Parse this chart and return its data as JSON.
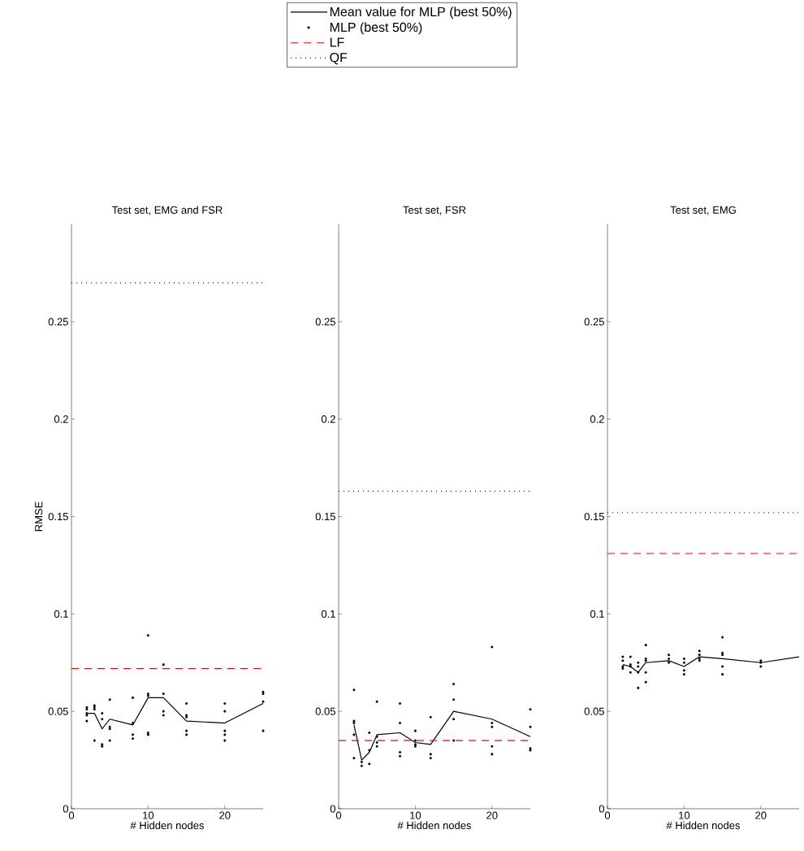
{
  "chart_data": [
    {
      "type": "line",
      "title": "Test set, EMG and FSR",
      "xlabel": "# Hidden nodes",
      "ylabel": "RMSE",
      "xlim": [
        0,
        25
      ],
      "ylim": [
        0,
        0.3
      ],
      "xticks": [
        0,
        10,
        20
      ],
      "yticks": [
        0,
        0.05,
        0.1,
        0.15,
        0.2,
        0.25
      ],
      "grid": false,
      "legend": "top",
      "series": [
        {
          "name": "Mean value for MLP (best 50%)",
          "type": "line",
          "color": "#000000",
          "line_style": "solid",
          "marker": "none",
          "x": [
            2,
            3,
            4,
            5,
            8,
            10,
            12,
            15,
            20,
            25
          ],
          "values": [
            0.049,
            0.049,
            0.041,
            0.046,
            0.043,
            0.057,
            0.057,
            0.045,
            0.044,
            0.054
          ]
        },
        {
          "name": "MLP (best 50%)",
          "type": "scatter",
          "color": "#000000",
          "marker": "circle",
          "x": [
            2,
            2,
            2,
            2,
            2,
            3,
            3,
            3,
            3,
            4,
            4,
            4,
            4,
            5,
            5,
            5,
            5,
            8,
            8,
            8,
            8,
            10,
            10,
            10,
            10,
            10,
            12,
            12,
            12,
            12,
            15,
            15,
            15,
            15,
            15,
            20,
            20,
            20,
            20,
            20,
            25,
            25,
            25,
            25
          ],
          "values": [
            0.052,
            0.051,
            0.049,
            0.048,
            0.045,
            0.053,
            0.052,
            0.051,
            0.035,
            0.049,
            0.046,
            0.033,
            0.032,
            0.056,
            0.042,
            0.041,
            0.035,
            0.057,
            0.044,
            0.038,
            0.036,
            0.089,
            0.059,
            0.058,
            0.039,
            0.038,
            0.074,
            0.059,
            0.05,
            0.048,
            0.054,
            0.048,
            0.047,
            0.04,
            0.038,
            0.054,
            0.05,
            0.04,
            0.038,
            0.035,
            0.06,
            0.059,
            0.055,
            0.04
          ]
        }
      ],
      "ref_lines": [
        {
          "axis": "y",
          "value": 0.072,
          "label": "LF",
          "color": "#ff0000",
          "line_style": "dashed"
        },
        {
          "axis": "y",
          "value": 0.27,
          "label": "QF",
          "color": "#0000ff",
          "line_style": "dotted"
        }
      ]
    },
    {
      "type": "line",
      "title": "Test set, FSR",
      "xlabel": "# Hidden nodes",
      "xlim": [
        0,
        25
      ],
      "ylim": [
        0,
        0.3
      ],
      "xticks": [
        0,
        10,
        20
      ],
      "yticks": [
        0,
        0.05,
        0.1,
        0.15,
        0.2,
        0.25
      ],
      "grid": false,
      "series": [
        {
          "type": "line",
          "color": "#000000",
          "line_style": "solid",
          "marker": "none",
          "x": [
            2,
            3,
            4,
            5,
            8,
            10,
            12,
            15,
            20,
            25
          ],
          "values": [
            0.043,
            0.025,
            0.029,
            0.038,
            0.039,
            0.034,
            0.033,
            0.05,
            0.046,
            0.037
          ]
        },
        {
          "type": "scatter",
          "color": "#000000",
          "marker": "circle",
          "x": [
            2,
            2,
            2,
            2,
            2,
            3,
            3,
            4,
            4,
            4,
            5,
            5,
            5,
            5,
            8,
            8,
            8,
            8,
            10,
            10,
            10,
            10,
            12,
            12,
            12,
            15,
            15,
            15,
            15,
            20,
            20,
            20,
            20,
            20,
            25,
            25,
            25,
            25
          ],
          "values": [
            0.061,
            0.045,
            0.044,
            0.038,
            0.026,
            0.024,
            0.022,
            0.039,
            0.03,
            0.023,
            0.055,
            0.037,
            0.034,
            0.032,
            0.054,
            0.044,
            0.029,
            0.027,
            0.04,
            0.035,
            0.033,
            0.032,
            0.047,
            0.028,
            0.026,
            0.064,
            0.056,
            0.046,
            0.035,
            0.083,
            0.044,
            0.042,
            0.032,
            0.028,
            0.051,
            0.042,
            0.031,
            0.03
          ]
        }
      ],
      "ref_lines": [
        {
          "axis": "y",
          "value": 0.035,
          "color": "#ff0000",
          "line_style": "dashed"
        },
        {
          "axis": "y",
          "value": 0.163,
          "color": "#0000ff",
          "line_style": "dotted"
        }
      ]
    },
    {
      "type": "line",
      "title": "Test set, EMG",
      "xlabel": "# Hidden nodes",
      "xlim": [
        0,
        25
      ],
      "ylim": [
        0,
        0.3
      ],
      "xticks": [
        0,
        10,
        20
      ],
      "yticks": [
        0,
        0.05,
        0.1,
        0.15,
        0.2,
        0.25
      ],
      "grid": false,
      "series": [
        {
          "type": "line",
          "color": "#000000",
          "line_style": "solid",
          "marker": "none",
          "x": [
            2,
            3,
            4,
            5,
            8,
            10,
            12,
            15,
            20,
            25
          ],
          "values": [
            0.074,
            0.073,
            0.07,
            0.075,
            0.076,
            0.073,
            0.078,
            0.077,
            0.075,
            0.078
          ]
        },
        {
          "type": "scatter",
          "color": "#000000",
          "marker": "circle",
          "x": [
            2,
            2,
            2,
            2,
            3,
            3,
            3,
            3,
            4,
            4,
            4,
            4,
            5,
            5,
            5,
            5,
            5,
            8,
            8,
            8,
            10,
            10,
            10,
            10,
            12,
            12,
            12,
            12,
            15,
            15,
            15,
            15,
            15,
            20,
            20,
            20
          ],
          "values": [
            0.078,
            0.076,
            0.073,
            0.072,
            0.078,
            0.074,
            0.073,
            0.07,
            0.075,
            0.073,
            0.07,
            0.062,
            0.084,
            0.077,
            0.076,
            0.07,
            0.065,
            0.079,
            0.077,
            0.075,
            0.077,
            0.075,
            0.071,
            0.069,
            0.081,
            0.079,
            0.077,
            0.076,
            0.088,
            0.08,
            0.079,
            0.073,
            0.069,
            0.076,
            0.075,
            0.073
          ]
        }
      ],
      "ref_lines": [
        {
          "axis": "y",
          "value": 0.131,
          "color": "#ff0000",
          "line_style": "dashed"
        },
        {
          "axis": "y",
          "value": 0.152,
          "color": "#0000ff",
          "line_style": "dotted"
        }
      ]
    }
  ]
}
